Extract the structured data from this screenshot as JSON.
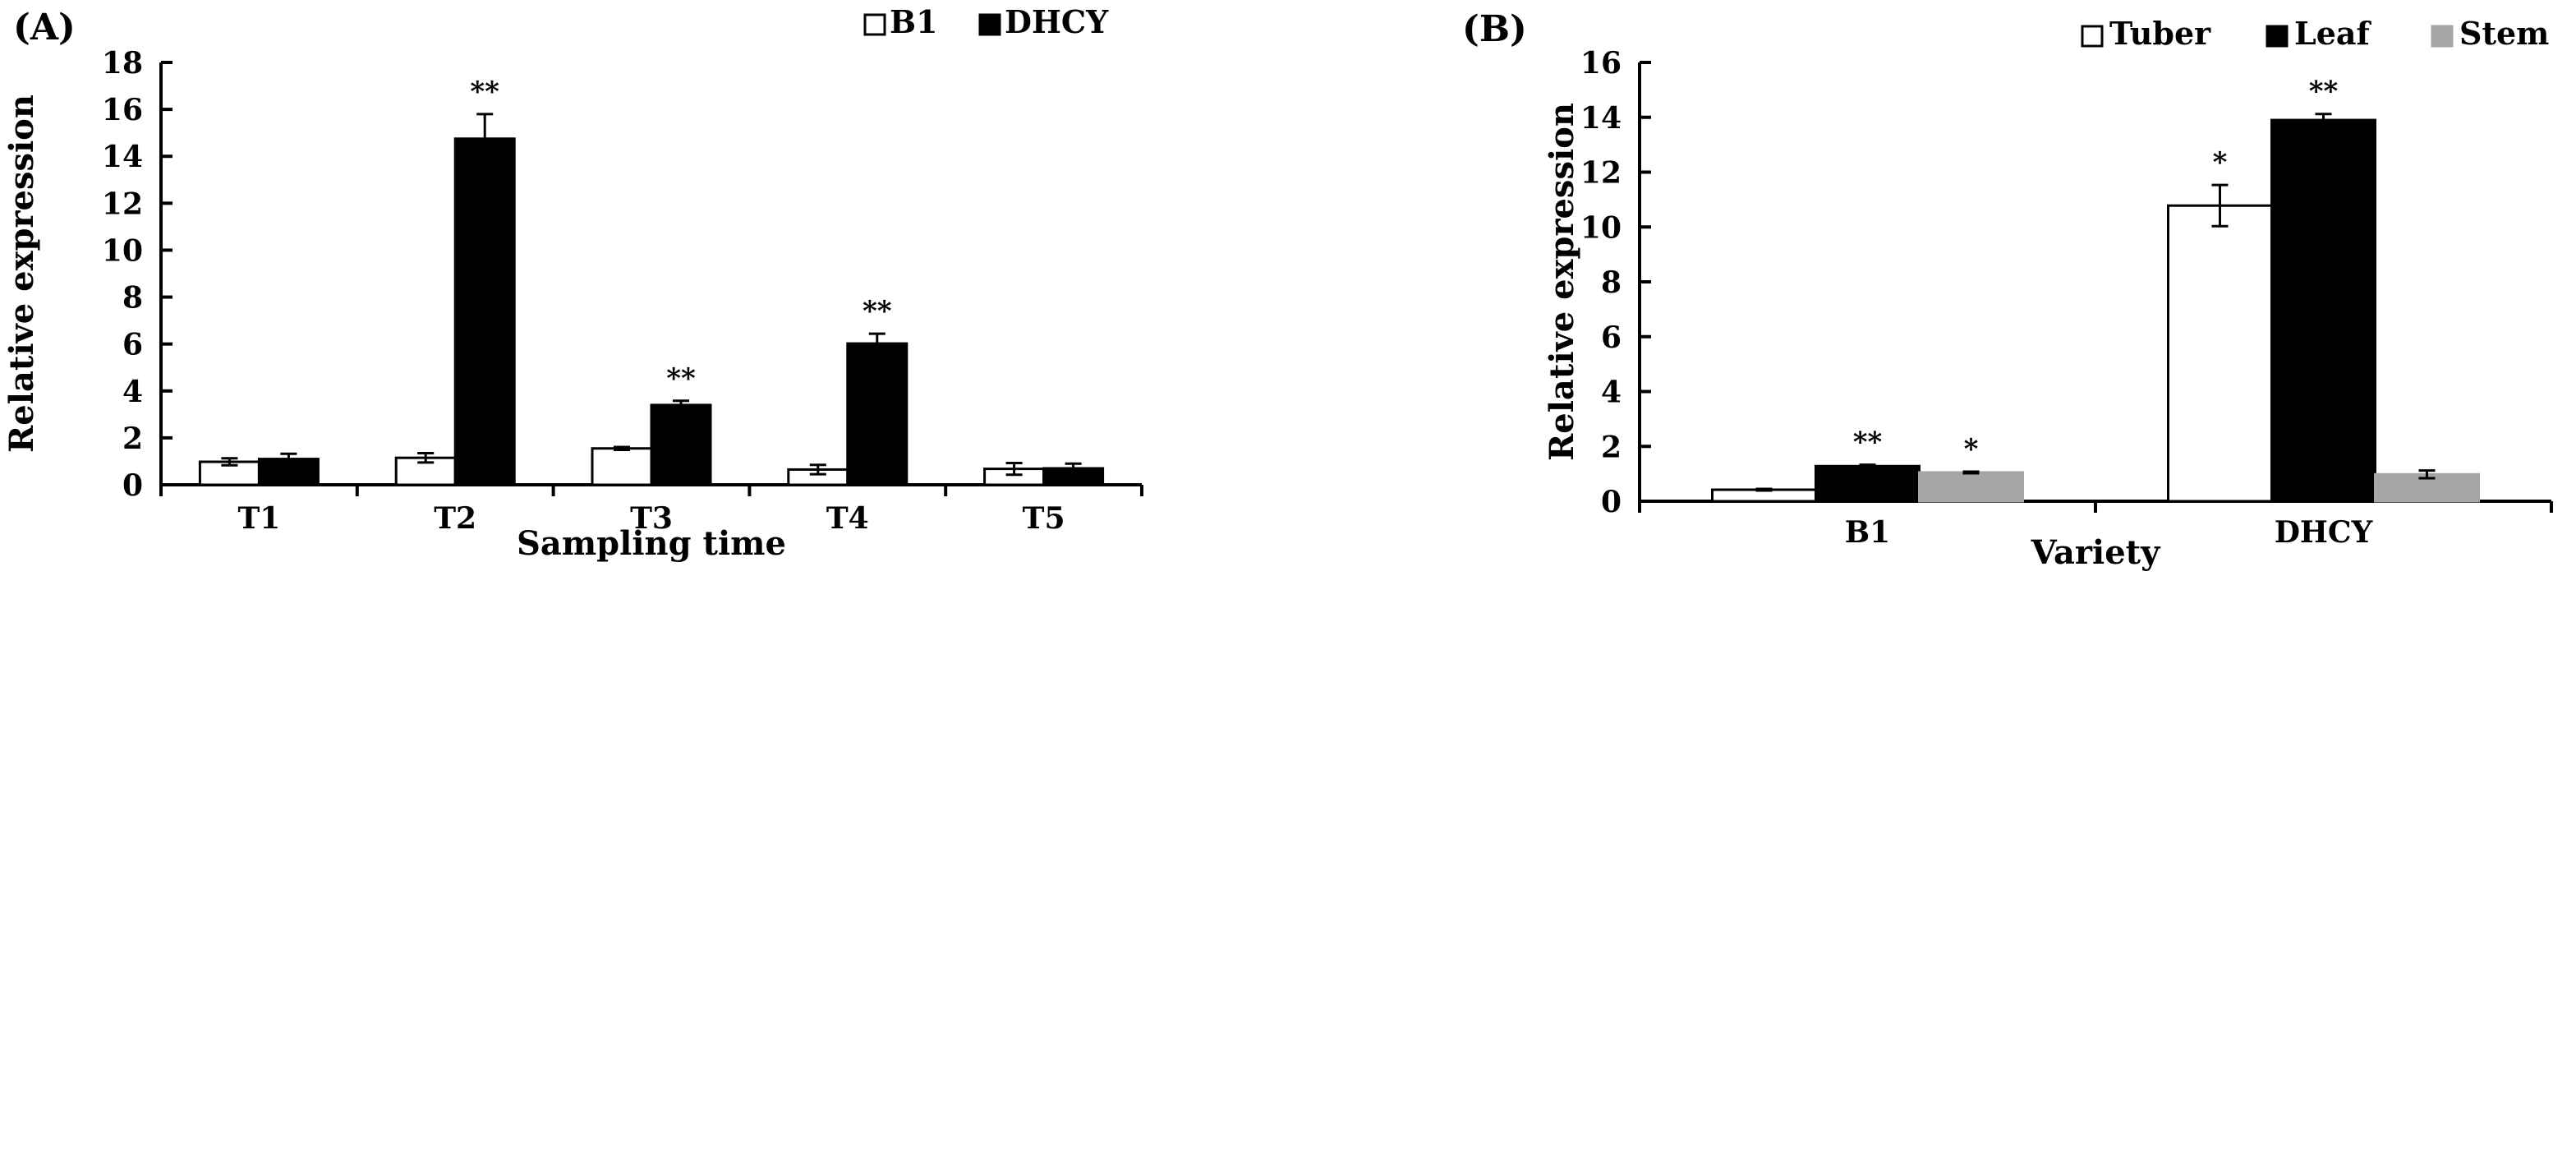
{
  "chart_data": [
    {
      "panel_label": "(A)",
      "type": "bar",
      "title": "",
      "xlabel": "Sampling time",
      "ylabel": "Relative expression",
      "ylim": [
        0,
        18
      ],
      "yticks": [
        "0",
        "2",
        "4",
        "6",
        "8",
        "10",
        "12",
        "14",
        "16",
        "18"
      ],
      "categories": [
        "T1",
        "T2",
        "T3",
        "T4",
        "T5"
      ],
      "legend_position": "top-right",
      "series": [
        {
          "name": "B1",
          "color": "#ffffff",
          "values": [
            0.98,
            1.15,
            1.55,
            0.65,
            0.68
          ],
          "errors": [
            0.15,
            0.2,
            0.06,
            0.2,
            0.25
          ],
          "significance": [
            "",
            "",
            "",
            "",
            ""
          ]
        },
        {
          "name": "DHCY",
          "color": "#000000",
          "values": [
            1.1,
            14.75,
            3.4,
            6.02,
            0.7
          ],
          "errors": [
            0.22,
            1.05,
            0.18,
            0.42,
            0.2
          ],
          "significance": [
            "",
            "**",
            "**",
            "**",
            ""
          ]
        }
      ]
    },
    {
      "panel_label": "(B)",
      "type": "bar",
      "title": "",
      "xlabel": "Variety",
      "ylabel": "Relative expression",
      "ylim": [
        0,
        16
      ],
      "yticks": [
        "0",
        "2",
        "4",
        "6",
        "8",
        "10",
        "12",
        "14",
        "16"
      ],
      "categories": [
        "B1",
        "DHCY"
      ],
      "legend_position": "top-right",
      "series": [
        {
          "name": "Tuber",
          "color": "#ffffff",
          "values": [
            0.42,
            10.78
          ],
          "errors": [
            0.03,
            0.75
          ],
          "significance": [
            "",
            "*"
          ]
        },
        {
          "name": "Leaf",
          "color": "#000000",
          "values": [
            1.28,
            13.9
          ],
          "errors": [
            0.05,
            0.22
          ],
          "significance": [
            "**",
            "**"
          ]
        },
        {
          "name": "Stem",
          "color": "#a6a6a6",
          "values": [
            1.05,
            0.98
          ],
          "errors": [
            0.03,
            0.14
          ],
          "significance": [
            "*",
            ""
          ]
        }
      ]
    }
  ]
}
